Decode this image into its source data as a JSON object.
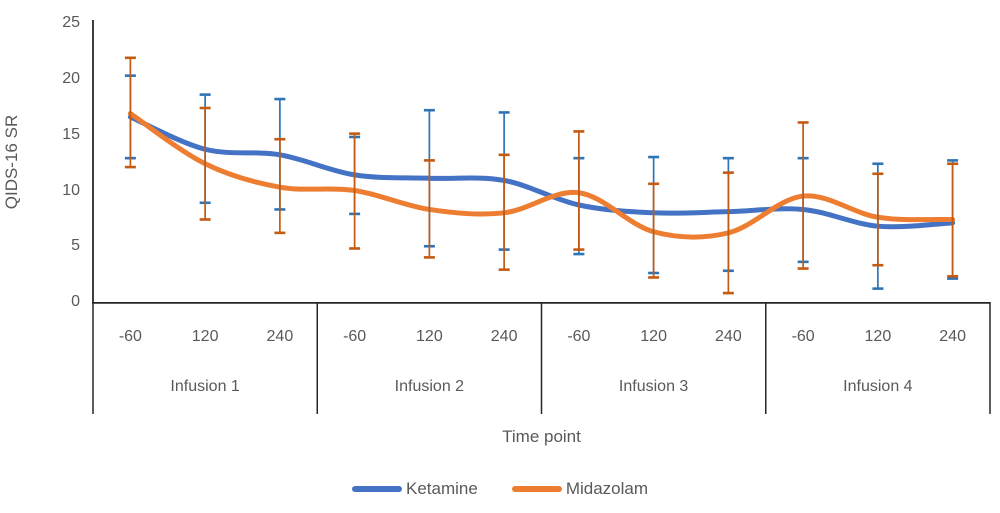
{
  "chart_data": {
    "type": "line",
    "title": "",
    "ylabel": "QIDS-16 SR",
    "xlabel": "Time point",
    "ylim": [
      0,
      25
    ],
    "yticks": [
      0,
      5,
      10,
      15,
      20,
      25
    ],
    "groups": [
      "Infusion 1",
      "Infusion 2",
      "Infusion 3",
      "Infusion 4"
    ],
    "timepoints": [
      "-60",
      "120",
      "240"
    ],
    "categories": [
      "-60",
      "120",
      "240",
      "-60",
      "120",
      "240",
      "-60",
      "120",
      "240",
      "-60",
      "120",
      "240"
    ],
    "grid": false,
    "legend_position": "bottom",
    "error_bars": true,
    "series": [
      {
        "name": "Ketamine",
        "color": "#4472C4",
        "error_color": "#2E75B6",
        "values": [
          16.6,
          13.7,
          13.2,
          11.4,
          11.1,
          10.9,
          8.7,
          8.0,
          8.1,
          8.3,
          6.8,
          7.1
        ],
        "error_upper": [
          20.3,
          18.6,
          18.2,
          14.8,
          17.2,
          17.0,
          12.9,
          13.0,
          12.9,
          12.9,
          12.4,
          12.7
        ],
        "error_lower": [
          12.9,
          8.9,
          8.3,
          7.9,
          5.0,
          4.7,
          4.3,
          2.6,
          2.8,
          3.6,
          1.2,
          2.1
        ]
      },
      {
        "name": "Midazolam",
        "color": "#ED7D31",
        "error_color": "#C55A11",
        "values": [
          16.9,
          12.4,
          10.3,
          10.0,
          8.3,
          8.0,
          9.8,
          6.3,
          6.2,
          9.5,
          7.6,
          7.4
        ],
        "error_upper": [
          21.9,
          17.4,
          14.6,
          15.1,
          12.7,
          13.2,
          15.3,
          10.6,
          11.6,
          16.1,
          11.5,
          12.4
        ],
        "error_lower": [
          12.1,
          7.4,
          6.2,
          4.8,
          4.0,
          2.9,
          4.7,
          2.2,
          0.8,
          3.0,
          3.3,
          2.3
        ]
      }
    ],
    "axis_color": "#262626",
    "text_color": "#595959"
  },
  "legend": {
    "items": [
      {
        "label": "Ketamine",
        "color": "#4472C4"
      },
      {
        "label": "Midazolam",
        "color": "#ED7D31"
      }
    ]
  }
}
